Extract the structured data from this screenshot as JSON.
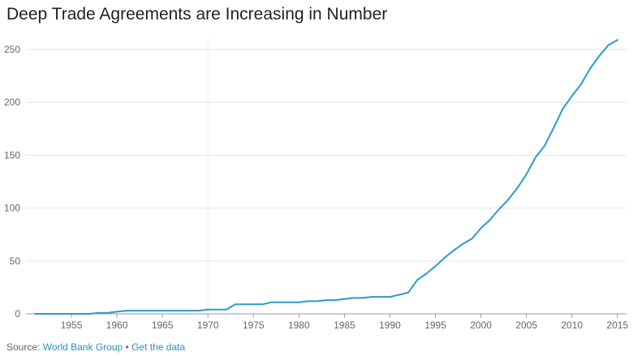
{
  "title": "Deep Trade Agreements are Increasing in Number",
  "footer": {
    "source_prefix": "Source:",
    "source_name": "World Bank Group",
    "separator": "•",
    "get_data": "Get the data"
  },
  "colors": {
    "line": "#2a9bc9",
    "grid": "#e6e6e6",
    "axis": "#9a9a9a",
    "link": "#2a8fc1"
  },
  "chart_data": {
    "type": "line",
    "title": "Deep Trade Agreements are Increasing in Number",
    "xlabel": "",
    "ylabel": "",
    "xlim": [
      1950,
      2016
    ],
    "ylim": [
      0,
      260
    ],
    "xticks": [
      1955,
      1960,
      1965,
      1970,
      1975,
      1980,
      1985,
      1990,
      1995,
      2000,
      2005,
      2010,
      2015
    ],
    "yticks": [
      0,
      50,
      100,
      150,
      200,
      250
    ],
    "grid": true,
    "legend": "none",
    "x": [
      1951,
      1952,
      1953,
      1954,
      1955,
      1956,
      1957,
      1958,
      1959,
      1960,
      1961,
      1962,
      1963,
      1964,
      1965,
      1966,
      1967,
      1968,
      1969,
      1970,
      1971,
      1972,
      1973,
      1974,
      1975,
      1976,
      1977,
      1978,
      1979,
      1980,
      1981,
      1982,
      1983,
      1984,
      1985,
      1986,
      1987,
      1988,
      1989,
      1990,
      1991,
      1992,
      1993,
      1994,
      1995,
      1996,
      1997,
      1998,
      1999,
      2000,
      2001,
      2002,
      2003,
      2004,
      2005,
      2006,
      2007,
      2008,
      2009,
      2010,
      2011,
      2012,
      2013,
      2014,
      2015
    ],
    "y": [
      0,
      0,
      0,
      0,
      0,
      0,
      0,
      1,
      1,
      2,
      3,
      3,
      3,
      3,
      3,
      3,
      3,
      3,
      3,
      4,
      4,
      4,
      9,
      9,
      9,
      9,
      11,
      11,
      11,
      11,
      12,
      12,
      13,
      13,
      14,
      15,
      15,
      16,
      16,
      16,
      18,
      20,
      32,
      38,
      45,
      53,
      60,
      66,
      71,
      81,
      89,
      99,
      108,
      119,
      132,
      148,
      159,
      176,
      194,
      206,
      217,
      232,
      244,
      254,
      259
    ]
  }
}
